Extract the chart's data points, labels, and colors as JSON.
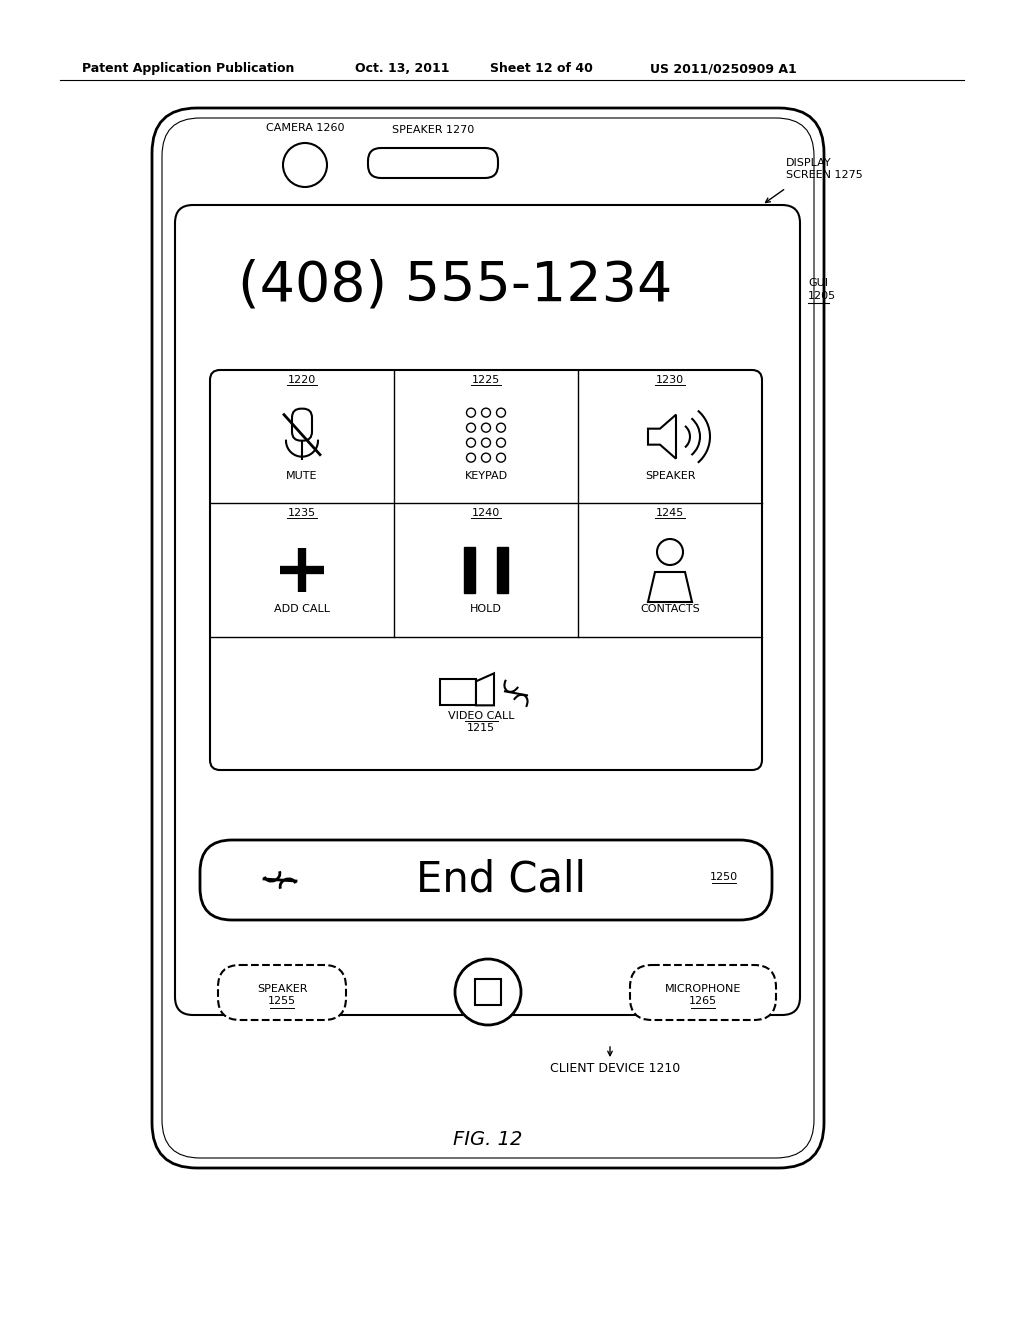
{
  "bg_color": "#ffffff",
  "header_text": "Patent Application Publication",
  "header_date": "Oct. 13, 2011",
  "header_sheet": "Sheet 12 of 40",
  "header_patent": "US 2011/0250909 A1",
  "phone_number": "(408) 555-1234",
  "fig_label": "FIG. 12",
  "labels": {
    "camera": "CAMERA 1260",
    "speaker_top": "SPEAKER 1270",
    "display_screen_1": "DISPLAY",
    "display_screen_2": "SCREEN 1275",
    "gui_1": "GUI",
    "gui_2": "1205",
    "mute": "MUTE",
    "mute_num": "1220",
    "keypad": "KEYPAD",
    "keypad_num": "1225",
    "speaker": "SPEAKER",
    "speaker_num": "1230",
    "add_call": "ADD CALL",
    "add_call_num": "1235",
    "hold": "HOLD",
    "hold_num": "1240",
    "contacts": "CONTACTS",
    "contacts_num": "1245",
    "video_call": "VIDEO CALL",
    "video_call_num": "1215",
    "end_call": "End Call",
    "end_call_num": "1250",
    "speaker_bot_1": "SPEAKER",
    "speaker_bot_2": "1255",
    "microphone_1": "MICROPHONE",
    "microphone_2": "1265",
    "client_device": "CLIENT DEVICE 1210"
  }
}
